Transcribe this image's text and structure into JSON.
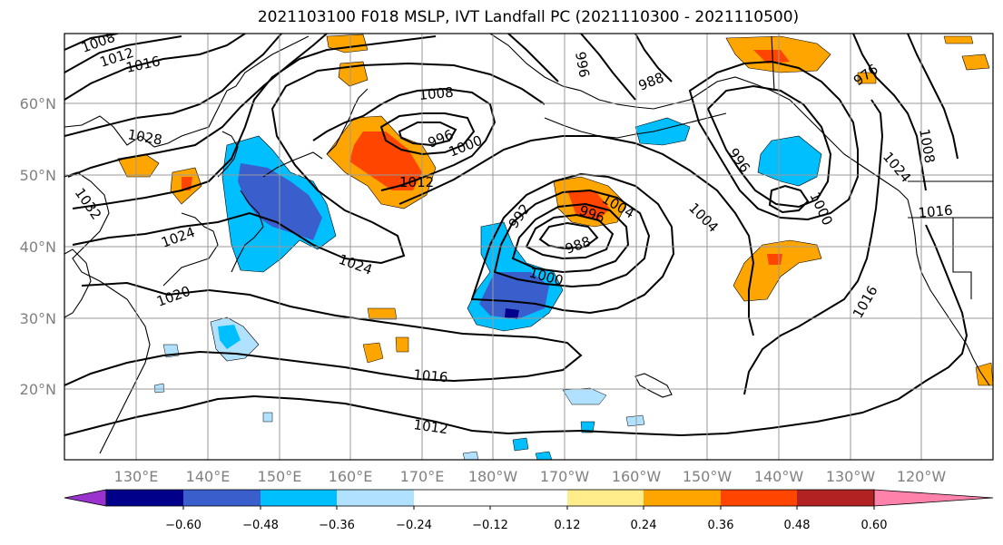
{
  "title": "2021103100 F018 MSLP, IVT Landfall PC (2021110300 - 2021110500)",
  "lat_labels": [
    "60°N",
    "50°N",
    "40°N",
    "30°N",
    "20°N"
  ],
  "lon_labels": [
    "130°E",
    "140°E",
    "150°E",
    "160°E",
    "170°E",
    "180°W",
    "170°W",
    "160°W",
    "150°W",
    "140°W",
    "130°W",
    "120°W"
  ],
  "colorbar": {
    "colors": [
      "#9a32cd",
      "#00008b",
      "#3a5fcd",
      "#00bfff",
      "#b0e2ff",
      "#ffffff",
      "#ffffff",
      "#ffec8b",
      "#ffa500",
      "#ff4500",
      "#b22222",
      "#ff82ab"
    ],
    "tick_labels": [
      "−0.60",
      "−0.48",
      "−0.36",
      "−0.24",
      "−0.12",
      "0.12",
      "0.24",
      "0.36",
      "0.48",
      "0.60"
    ]
  },
  "isobar_labels": {
    "l1008a": "1008",
    "l1012a": "1012",
    "l1016a": "1016",
    "l1028": "1028",
    "l1032": "1032",
    "l1024a": "1024",
    "l1020": "1020",
    "l1024b": "1024",
    "l1008b": "1008",
    "l996a": "996",
    "l1000a": "1000",
    "l1012b": "1012",
    "l992": "992",
    "l996b": "996",
    "l1004a": "1004",
    "l988a": "988",
    "l1000b": "1000",
    "l1016b": "1016",
    "l1012c": "1012",
    "l996c": "996",
    "l988b": "988",
    "l976": "976",
    "l1004b": "1004",
    "l1000c": "1000",
    "l1016c": "1016",
    "l1024c": "1024",
    "l1008c": "1008",
    "l1016d": "1016"
  }
}
